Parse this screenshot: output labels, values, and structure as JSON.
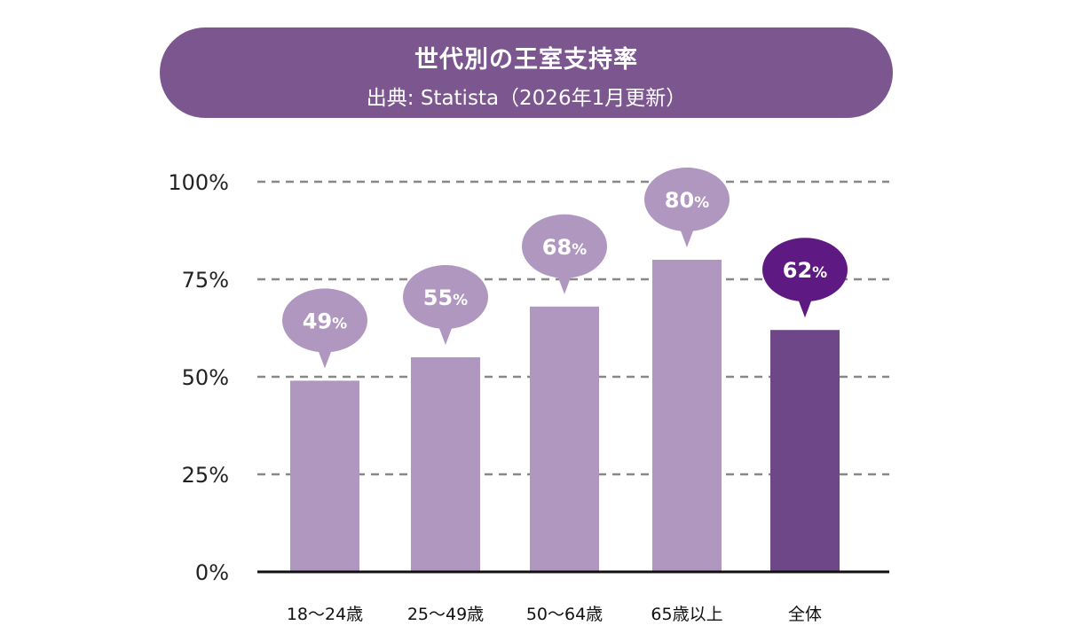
{
  "chart_data": {
    "type": "bar",
    "title": "世代別の王室支持率",
    "subtitle": "出典: Statista（2026年1月更新）",
    "categories": [
      "18〜24歳",
      "25〜49歳",
      "50〜64歳",
      "65歳以上",
      "全体"
    ],
    "values": [
      49,
      55,
      68,
      80,
      62
    ],
    "data_labels": [
      "49%",
      "55%",
      "68%",
      "80%",
      "62%"
    ],
    "ylim": [
      0,
      100
    ],
    "yticks": [
      "0%",
      "25%",
      "50%",
      "75%",
      "100%"
    ],
    "grid": "dashed horizontal",
    "xlabel": "",
    "ylabel": "",
    "colors": {
      "bar": "#b097bf",
      "highlight_bar": "#6e4788",
      "highlight_bubble": "#5e1a82",
      "header": "#7b568f",
      "grid": "#888888"
    }
  }
}
